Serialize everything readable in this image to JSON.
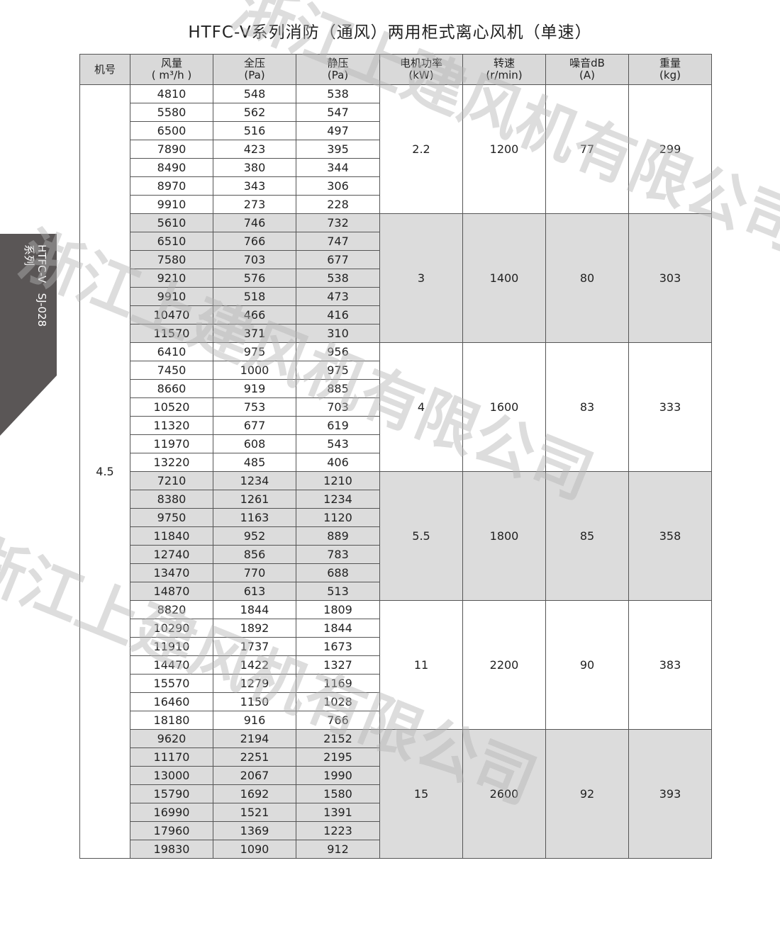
{
  "title": "HTFC-V系列消防（通风）两用柜式离心风机（单速）",
  "side_tab": {
    "line1": "HTFC-V",
    "line2": "系列",
    "code": "SJ-028"
  },
  "watermark": "浙江上建风机有限公司",
  "table": {
    "headers": [
      [
        "机号",
        ""
      ],
      [
        "风量",
        "( m³/h )"
      ],
      [
        "全压",
        "(Pa)"
      ],
      [
        "静压",
        "(Pa)"
      ],
      [
        "电机功率",
        "(kW)"
      ],
      [
        "转速",
        "(r/min)"
      ],
      [
        "噪音dB",
        "(A)"
      ],
      [
        "重量",
        "(kg)"
      ]
    ],
    "model": "4.5",
    "groups": [
      {
        "power": "2.2",
        "speed": "1200",
        "noise": "77",
        "weight": "299",
        "rows": [
          [
            "4810",
            "548",
            "538"
          ],
          [
            "5580",
            "562",
            "547"
          ],
          [
            "6500",
            "516",
            "497"
          ],
          [
            "7890",
            "423",
            "395"
          ],
          [
            "8490",
            "380",
            "344"
          ],
          [
            "8970",
            "343",
            "306"
          ],
          [
            "9910",
            "273",
            "228"
          ]
        ]
      },
      {
        "power": "3",
        "speed": "1400",
        "noise": "80",
        "weight": "303",
        "rows": [
          [
            "5610",
            "746",
            "732"
          ],
          [
            "6510",
            "766",
            "747"
          ],
          [
            "7580",
            "703",
            "677"
          ],
          [
            "9210",
            "576",
            "538"
          ],
          [
            "9910",
            "518",
            "473"
          ],
          [
            "10470",
            "466",
            "416"
          ],
          [
            "11570",
            "371",
            "310"
          ]
        ]
      },
      {
        "power": "4",
        "speed": "1600",
        "noise": "83",
        "weight": "333",
        "rows": [
          [
            "6410",
            "975",
            "956"
          ],
          [
            "7450",
            "1000",
            "975"
          ],
          [
            "8660",
            "919",
            "885"
          ],
          [
            "10520",
            "753",
            "703"
          ],
          [
            "11320",
            "677",
            "619"
          ],
          [
            "11970",
            "608",
            "543"
          ],
          [
            "13220",
            "485",
            "406"
          ]
        ]
      },
      {
        "power": "5.5",
        "speed": "1800",
        "noise": "85",
        "weight": "358",
        "rows": [
          [
            "7210",
            "1234",
            "1210"
          ],
          [
            "8380",
            "1261",
            "1234"
          ],
          [
            "9750",
            "1163",
            "1120"
          ],
          [
            "11840",
            "952",
            "889"
          ],
          [
            "12740",
            "856",
            "783"
          ],
          [
            "13470",
            "770",
            "688"
          ],
          [
            "14870",
            "613",
            "513"
          ]
        ]
      },
      {
        "power": "11",
        "speed": "2200",
        "noise": "90",
        "weight": "383",
        "rows": [
          [
            "8820",
            "1844",
            "1809"
          ],
          [
            "10290",
            "1892",
            "1844"
          ],
          [
            "11910",
            "1737",
            "1673"
          ],
          [
            "14470",
            "1422",
            "1327"
          ],
          [
            "15570",
            "1279",
            "1169"
          ],
          [
            "16460",
            "1150",
            "1028"
          ],
          [
            "18180",
            "916",
            "766"
          ]
        ]
      },
      {
        "power": "15",
        "speed": "2600",
        "noise": "92",
        "weight": "393",
        "rows": [
          [
            "9620",
            "2194",
            "2152"
          ],
          [
            "11170",
            "2251",
            "2195"
          ],
          [
            "13000",
            "2067",
            "1990"
          ],
          [
            "15790",
            "1692",
            "1580"
          ],
          [
            "16990",
            "1521",
            "1391"
          ],
          [
            "17960",
            "1369",
            "1223"
          ],
          [
            "19830",
            "1090",
            "912"
          ]
        ]
      }
    ]
  }
}
